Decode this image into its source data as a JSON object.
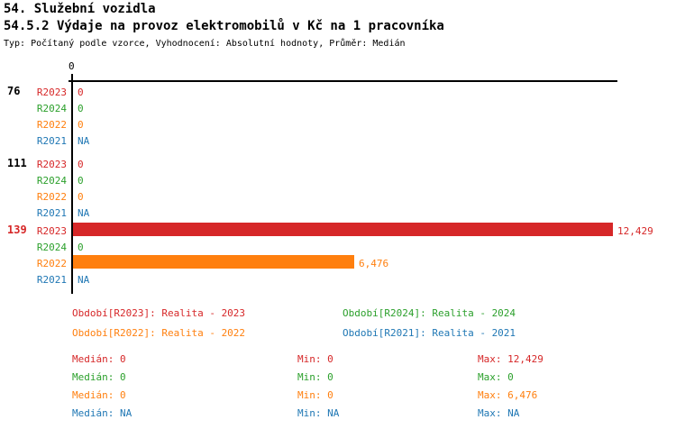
{
  "header": {
    "title1": "54. Služební vozidla",
    "title2": "54.5.2 Výdaje na provoz elektromobilů v Kč na 1 pracovníka",
    "subtitle": "Typ: Počítaný podle vzorce, Vyhodnocení: Absolutní hodnoty, Průměr: Medián"
  },
  "colors": {
    "R2023": "#d62728",
    "R2024": "#2ca02c",
    "R2022": "#ff7f0e",
    "R2021": "#1f77b4",
    "axis": "#000000",
    "text": "#000000"
  },
  "chart_data": {
    "type": "bar",
    "orientation": "horizontal",
    "title": "54.5.2 Výdaje na provoz elektromobilů v Kč na 1 pracovníka",
    "axis": {
      "xmin": 0,
      "xmax": 12429,
      "tick_labels": [
        "0"
      ]
    },
    "series_order": [
      "R2023",
      "R2024",
      "R2022",
      "R2021"
    ],
    "groups": [
      {
        "label": "76",
        "label_color": "#000000",
        "rows": [
          {
            "series": "R2023",
            "value": 0,
            "display": "0"
          },
          {
            "series": "R2024",
            "value": 0,
            "display": "0"
          },
          {
            "series": "R2022",
            "value": 0,
            "display": "0"
          },
          {
            "series": "R2021",
            "value": null,
            "display": "NA"
          }
        ]
      },
      {
        "label": "111",
        "label_color": "#000000",
        "rows": [
          {
            "series": "R2023",
            "value": 0,
            "display": "0"
          },
          {
            "series": "R2024",
            "value": 0,
            "display": "0"
          },
          {
            "series": "R2022",
            "value": 0,
            "display": "0"
          },
          {
            "series": "R2021",
            "value": null,
            "display": "NA"
          }
        ]
      },
      {
        "label": "139",
        "label_color": "#d62728",
        "rows": [
          {
            "series": "R2023",
            "value": 12429,
            "display": "12,429"
          },
          {
            "series": "R2024",
            "value": 0,
            "display": "0"
          },
          {
            "series": "R2022",
            "value": 6476,
            "display": "6,476"
          },
          {
            "series": "R2021",
            "value": null,
            "display": "NA"
          }
        ]
      }
    ]
  },
  "legend": [
    {
      "series": "R2023",
      "text": "Období[R2023]: Realita - 2023"
    },
    {
      "series": "R2024",
      "text": "Období[R2024]: Realita - 2024"
    },
    {
      "series": "R2022",
      "text": "Období[R2022]: Realita - 2022"
    },
    {
      "series": "R2021",
      "text": "Období[R2021]: Realita - 2021"
    }
  ],
  "stats_labels": {
    "median": "Medián:",
    "min": "Min:",
    "max": "Max:"
  },
  "stats": [
    {
      "series": "R2023",
      "median": "0",
      "min": "0",
      "max": "12,429"
    },
    {
      "series": "R2024",
      "median": "0",
      "min": "0",
      "max": "0"
    },
    {
      "series": "R2022",
      "median": "0",
      "min": "0",
      "max": "6,476"
    },
    {
      "series": "R2021",
      "median": "NA",
      "min": "NA",
      "max": "NA"
    }
  ]
}
